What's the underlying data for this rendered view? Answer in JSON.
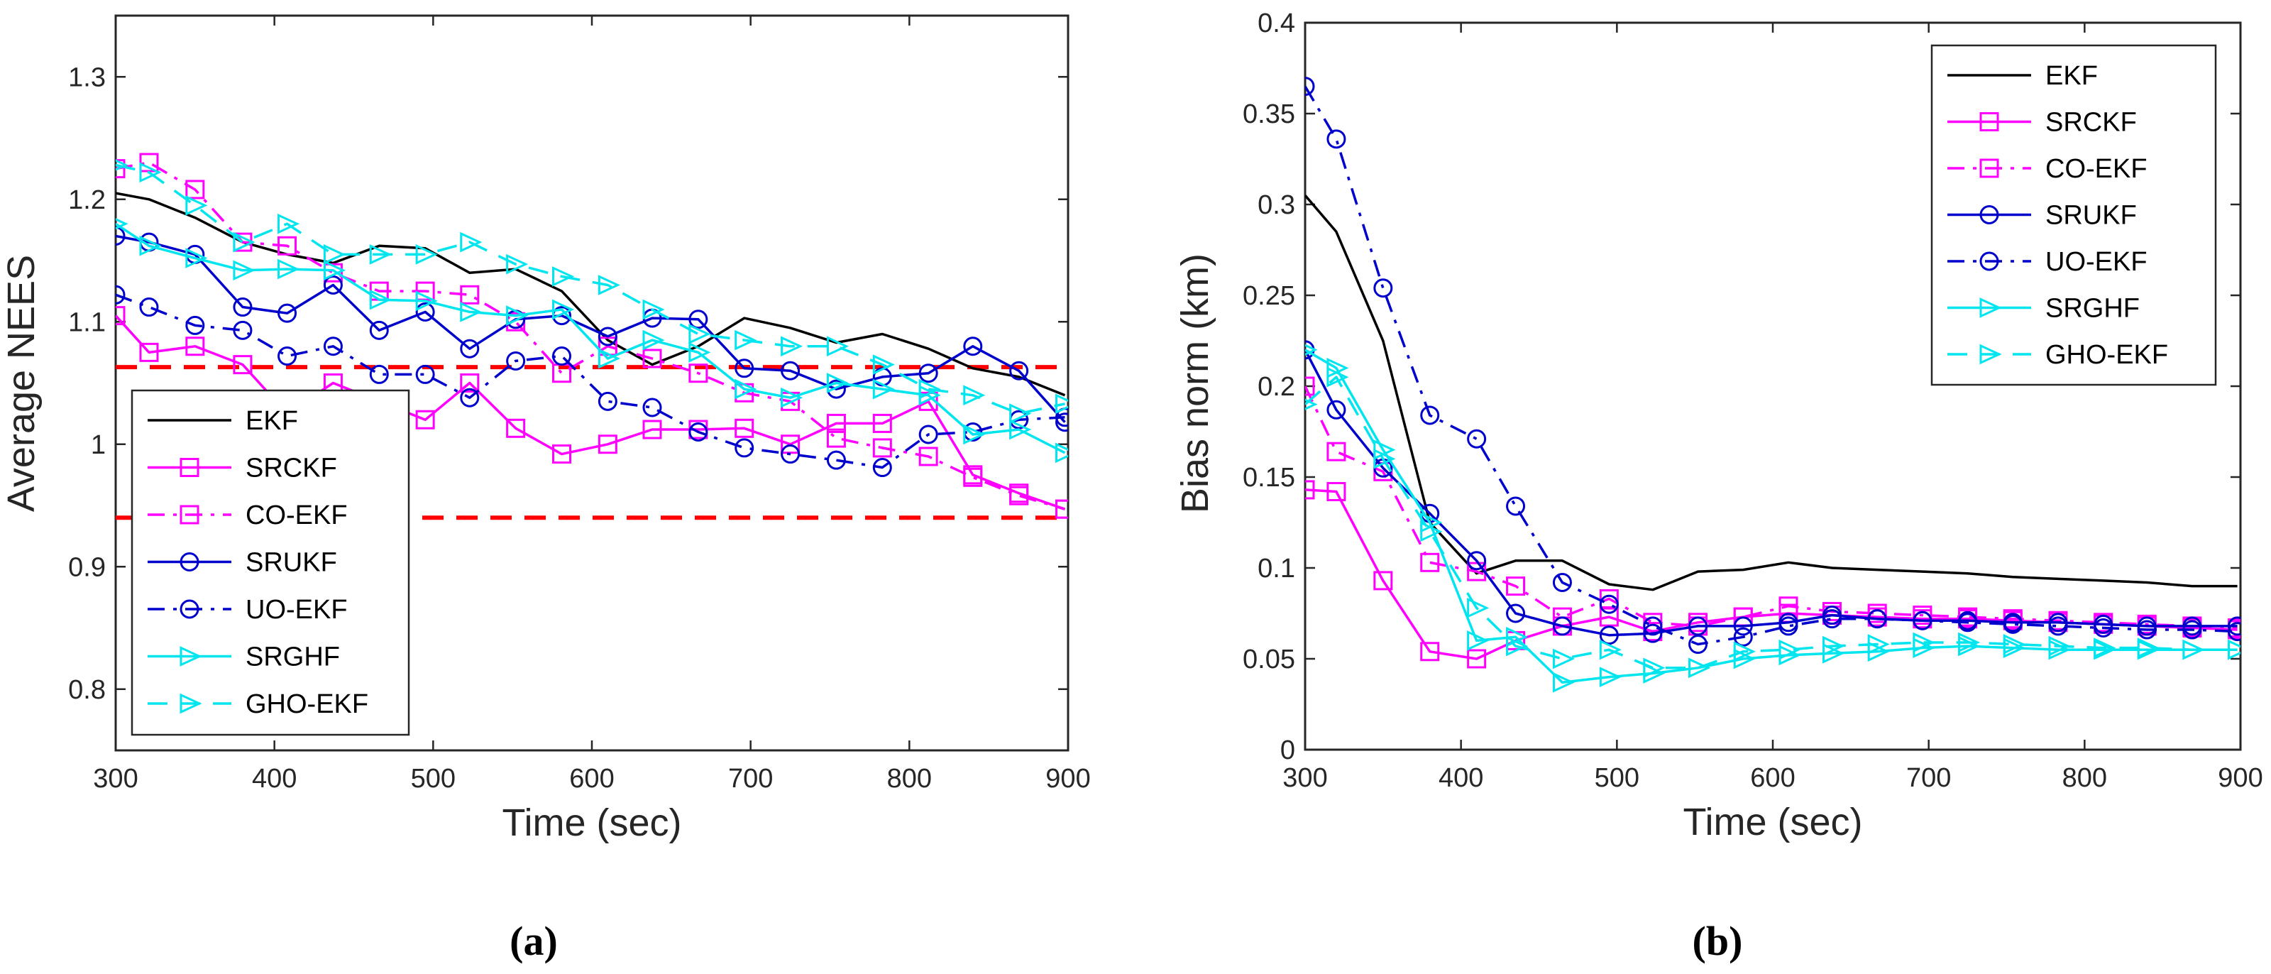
{
  "captions": {
    "a": "(a)",
    "b": "(b)"
  },
  "colors": {
    "EKF": "#000000",
    "magenta": "#ff00ff",
    "blue": "#0000cd",
    "cyan": "#00e5ee",
    "threshold": "#ff0000"
  },
  "chart_data": [
    {
      "type": "line",
      "title": "",
      "xlabel": "Time (sec)",
      "ylabel": "Average NEES",
      "xlim": [
        300,
        900
      ],
      "ylim": [
        0.75,
        1.35
      ],
      "xticks": [
        300,
        400,
        500,
        600,
        700,
        800,
        900
      ],
      "xtick_labels": [
        "300",
        "400",
        "500",
        "600",
        "700",
        "800",
        "900"
      ],
      "yticks": [
        0.8,
        0.9,
        1.0,
        1.1,
        1.2,
        1.3
      ],
      "ytick_labels": [
        "0.8",
        "0.9",
        "1",
        "1.1",
        "1.2",
        "1.3"
      ],
      "grid": false,
      "legend_position": "bottom-left",
      "reference_lines": [
        1.063,
        0.94
      ],
      "series": [
        {
          "name": "EKF",
          "color": "#000000",
          "dash": "solid",
          "marker": "none",
          "x": [
            300,
            321,
            350,
            380,
            408,
            437,
            466,
            495,
            523,
            552,
            581,
            610,
            638,
            667,
            696,
            725,
            754,
            783,
            812,
            840,
            869,
            898
          ],
          "y": [
            1.205,
            1.2,
            1.185,
            1.165,
            1.155,
            1.148,
            1.162,
            1.16,
            1.14,
            1.143,
            1.125,
            1.085,
            1.065,
            1.08,
            1.103,
            1.095,
            1.083,
            1.09,
            1.078,
            1.062,
            1.055,
            1.04
          ]
        },
        {
          "name": "SRCKF",
          "color": "#ff00ff",
          "dash": "solid",
          "marker": "square",
          "x": [
            300,
            321,
            350,
            380,
            408,
            437,
            466,
            495,
            523,
            552,
            581,
            610,
            638,
            667,
            696,
            725,
            754,
            783,
            812,
            840,
            869,
            898
          ],
          "y": [
            1.105,
            1.075,
            1.08,
            1.065,
            1.025,
            1.05,
            1.035,
            1.02,
            1.05,
            1.013,
            0.992,
            1.0,
            1.012,
            1.012,
            1.013,
            1.0,
            1.017,
            1.017,
            1.035,
            0.975,
            0.96,
            0.947
          ]
        },
        {
          "name": "CO-EKF",
          "color": "#ff00ff",
          "dash": "dashdot",
          "marker": "square",
          "x": [
            300,
            321,
            350,
            380,
            408,
            437,
            466,
            495,
            523,
            552,
            581,
            610,
            638,
            667,
            696,
            725,
            754,
            783,
            812,
            840,
            869,
            898
          ],
          "y": [
            1.225,
            1.23,
            1.208,
            1.165,
            1.162,
            1.14,
            1.125,
            1.125,
            1.122,
            1.1,
            1.058,
            1.08,
            1.07,
            1.058,
            1.042,
            1.035,
            1.005,
            0.997,
            0.99,
            0.973,
            0.958,
            0.947
          ]
        },
        {
          "name": "SRUKF",
          "color": "#0000cd",
          "dash": "solid",
          "marker": "circle",
          "x": [
            300,
            321,
            350,
            380,
            408,
            437,
            466,
            495,
            523,
            552,
            581,
            610,
            638,
            667,
            696,
            725,
            754,
            783,
            812,
            840,
            869,
            898
          ],
          "y": [
            1.17,
            1.165,
            1.155,
            1.112,
            1.107,
            1.13,
            1.093,
            1.108,
            1.078,
            1.102,
            1.105,
            1.088,
            1.103,
            1.102,
            1.062,
            1.06,
            1.045,
            1.055,
            1.058,
            1.08,
            1.06,
            1.018
          ]
        },
        {
          "name": "UO-EKF",
          "color": "#0000cd",
          "dash": "dashdot",
          "marker": "circle",
          "x": [
            300,
            321,
            350,
            380,
            408,
            437,
            466,
            495,
            523,
            552,
            581,
            610,
            638,
            667,
            696,
            725,
            754,
            783,
            812,
            840,
            869,
            898
          ],
          "y": [
            1.122,
            1.112,
            1.097,
            1.093,
            1.072,
            1.08,
            1.057,
            1.057,
            1.038,
            1.068,
            1.072,
            1.035,
            1.03,
            1.01,
            0.997,
            0.992,
            0.987,
            0.981,
            1.008,
            1.01,
            1.02,
            1.022
          ]
        },
        {
          "name": "SRGHF",
          "color": "#00e5ee",
          "dash": "solid",
          "marker": "triangle-right",
          "x": [
            300,
            321,
            350,
            380,
            408,
            437,
            466,
            495,
            523,
            552,
            581,
            610,
            638,
            667,
            696,
            725,
            754,
            783,
            812,
            840,
            869,
            898
          ],
          "y": [
            1.18,
            1.162,
            1.152,
            1.142,
            1.143,
            1.142,
            1.118,
            1.117,
            1.108,
            1.105,
            1.11,
            1.07,
            1.085,
            1.075,
            1.045,
            1.038,
            1.05,
            1.045,
            1.04,
            1.008,
            1.012,
            0.993
          ]
        },
        {
          "name": "GHO-EKF",
          "color": "#00e5ee",
          "dash": "dashed",
          "marker": "triangle-right",
          "x": [
            300,
            321,
            350,
            380,
            408,
            437,
            466,
            495,
            523,
            552,
            581,
            610,
            638,
            667,
            696,
            725,
            754,
            783,
            812,
            840,
            869,
            898
          ],
          "y": [
            1.228,
            1.222,
            1.195,
            1.165,
            1.18,
            1.155,
            1.155,
            1.155,
            1.165,
            1.147,
            1.137,
            1.13,
            1.11,
            1.09,
            1.085,
            1.08,
            1.08,
            1.065,
            1.045,
            1.04,
            1.025,
            1.033
          ]
        }
      ]
    },
    {
      "type": "line",
      "title": "",
      "xlabel": "Time (sec)",
      "ylabel": "Bias norm (km)",
      "xlim": [
        300,
        900
      ],
      "ylim": [
        0,
        0.4
      ],
      "xticks": [
        300,
        400,
        500,
        600,
        700,
        800,
        900
      ],
      "xtick_labels": [
        "300",
        "400",
        "500",
        "600",
        "700",
        "800",
        "900"
      ],
      "yticks": [
        0,
        0.05,
        0.1,
        0.15,
        0.2,
        0.25,
        0.3,
        0.35,
        0.4
      ],
      "ytick_labels": [
        "0",
        "0.05",
        "0.1",
        "0.15",
        "0.2",
        "0.25",
        "0.3",
        "0.35",
        "0.4"
      ],
      "grid": false,
      "legend_position": "top-right",
      "series": [
        {
          "name": "EKF",
          "color": "#000000",
          "dash": "solid",
          "marker": "none",
          "x": [
            300,
            320,
            350,
            380,
            410,
            435,
            465,
            495,
            523,
            552,
            581,
            610,
            638,
            667,
            696,
            725,
            754,
            783,
            812,
            840,
            869,
            898
          ],
          "y": [
            0.305,
            0.285,
            0.225,
            0.125,
            0.097,
            0.104,
            0.104,
            0.091,
            0.088,
            0.098,
            0.099,
            0.103,
            0.1,
            0.099,
            0.098,
            0.097,
            0.095,
            0.094,
            0.093,
            0.092,
            0.09,
            0.09
          ]
        },
        {
          "name": "SRCKF",
          "color": "#ff00ff",
          "dash": "solid",
          "marker": "square",
          "x": [
            300,
            320,
            350,
            380,
            410,
            435,
            465,
            495,
            523,
            552,
            581,
            610,
            638,
            667,
            696,
            725,
            754,
            783,
            812,
            840,
            869,
            898
          ],
          "y": [
            0.143,
            0.142,
            0.093,
            0.054,
            0.05,
            0.06,
            0.068,
            0.073,
            0.065,
            0.07,
            0.073,
            0.075,
            0.074,
            0.073,
            0.072,
            0.072,
            0.071,
            0.07,
            0.069,
            0.068,
            0.067,
            0.066
          ]
        },
        {
          "name": "CO-EKF",
          "color": "#ff00ff",
          "dash": "dashdot",
          "marker": "square",
          "x": [
            300,
            320,
            350,
            380,
            410,
            435,
            465,
            495,
            523,
            552,
            581,
            610,
            638,
            667,
            696,
            725,
            754,
            783,
            812,
            840,
            869,
            898
          ],
          "y": [
            0.2,
            0.164,
            0.153,
            0.103,
            0.098,
            0.09,
            0.073,
            0.083,
            0.07,
            0.068,
            0.073,
            0.079,
            0.076,
            0.075,
            0.074,
            0.073,
            0.072,
            0.071,
            0.07,
            0.069,
            0.068,
            0.067
          ]
        },
        {
          "name": "SRUKF",
          "color": "#0000cd",
          "dash": "solid",
          "marker": "circle",
          "x": [
            300,
            320,
            350,
            380,
            410,
            435,
            465,
            495,
            523,
            552,
            581,
            610,
            638,
            667,
            696,
            725,
            754,
            783,
            812,
            840,
            869,
            898
          ],
          "y": [
            0.22,
            0.187,
            0.155,
            0.13,
            0.104,
            0.075,
            0.068,
            0.063,
            0.064,
            0.068,
            0.068,
            0.07,
            0.074,
            0.072,
            0.071,
            0.071,
            0.07,
            0.07,
            0.069,
            0.068,
            0.068,
            0.068
          ]
        },
        {
          "name": "UO-EKF",
          "color": "#0000cd",
          "dash": "dashdot",
          "marker": "circle",
          "x": [
            300,
            320,
            350,
            380,
            410,
            435,
            465,
            495,
            523,
            552,
            581,
            610,
            638,
            667,
            696,
            725,
            754,
            783,
            812,
            840,
            869,
            898
          ],
          "y": [
            0.365,
            0.336,
            0.254,
            0.184,
            0.171,
            0.134,
            0.092,
            0.08,
            0.068,
            0.058,
            0.062,
            0.068,
            0.072,
            0.072,
            0.071,
            0.07,
            0.069,
            0.068,
            0.067,
            0.066,
            0.066,
            0.065
          ]
        },
        {
          "name": "SRGHF",
          "color": "#00e5ee",
          "dash": "solid",
          "marker": "triangle-right",
          "x": [
            300,
            320,
            350,
            380,
            410,
            435,
            465,
            495,
            523,
            552,
            581,
            610,
            638,
            667,
            696,
            725,
            754,
            783,
            812,
            840,
            869,
            898
          ],
          "y": [
            0.22,
            0.21,
            0.165,
            0.125,
            0.06,
            0.062,
            0.037,
            0.04,
            0.042,
            0.045,
            0.05,
            0.052,
            0.053,
            0.054,
            0.056,
            0.057,
            0.056,
            0.055,
            0.055,
            0.055,
            0.055,
            0.055
          ]
        },
        {
          "name": "GHO-EKF",
          "color": "#00e5ee",
          "dash": "dashed",
          "marker": "triangle-right",
          "x": [
            300,
            320,
            350,
            380,
            410,
            435,
            465,
            495,
            523,
            552,
            581,
            610,
            638,
            667,
            696,
            725,
            754,
            783,
            812,
            840,
            869,
            898
          ],
          "y": [
            0.19,
            0.205,
            0.16,
            0.12,
            0.078,
            0.057,
            0.05,
            0.055,
            0.045,
            0.045,
            0.054,
            0.055,
            0.057,
            0.058,
            0.059,
            0.059,
            0.058,
            0.057,
            0.056,
            0.056,
            0.055,
            0.055
          ]
        }
      ]
    }
  ]
}
